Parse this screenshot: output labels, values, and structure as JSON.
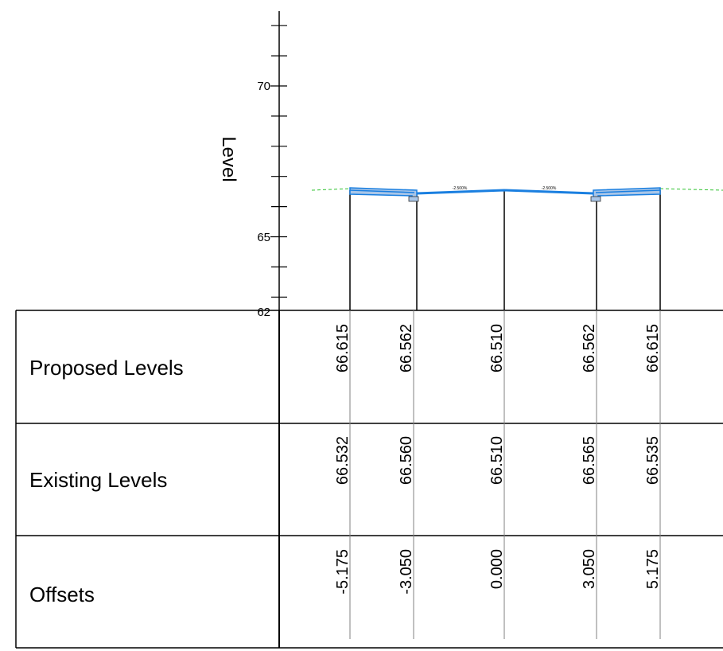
{
  "axis": {
    "title": "Level",
    "ticks": [
      {
        "value": 70,
        "label": "70"
      },
      {
        "value": 65,
        "label": "65"
      },
      {
        "value": 62,
        "label": "62"
      }
    ]
  },
  "section": {
    "grade_left": "-2.500%",
    "grade_right": "-2.500%"
  },
  "table": {
    "rows": [
      {
        "label": "Proposed Levels",
        "values": [
          "66.615",
          "66.562",
          "66.510",
          "66.562",
          "66.615"
        ]
      },
      {
        "label": "Existing Levels",
        "values": [
          "66.532",
          "66.560",
          "66.510",
          "66.565",
          "66.535"
        ]
      },
      {
        "label": "Offsets",
        "values": [
          "-5.175",
          "-3.050",
          "0.000",
          "3.050",
          "5.175"
        ]
      }
    ]
  },
  "colors": {
    "road_surface": "#1a7fe0",
    "kerb_fill": "#a9c6e8",
    "existing_ground": "#2ec22e",
    "lines": "#000000",
    "grid_lines": "#808080"
  }
}
